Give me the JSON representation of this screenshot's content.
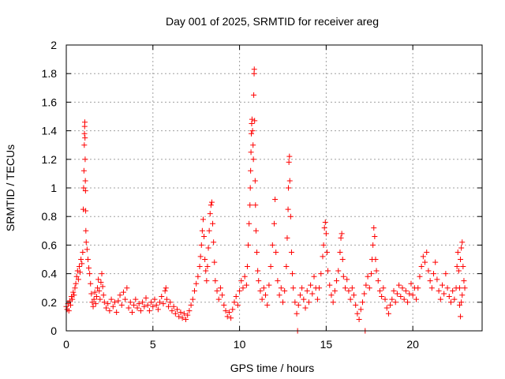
{
  "chart_data": {
    "type": "scatter",
    "title": "Day 001 of 2025, SRMTID for receiver areg",
    "xlabel": "GPS time / hours",
    "ylabel": "SRMTID / TECUs",
    "xlim": [
      0,
      24
    ],
    "ylim": [
      0,
      2
    ],
    "xticks": [
      0,
      5,
      10,
      15,
      20
    ],
    "xtick_labels": [
      "0",
      "5",
      "10",
      "15",
      "20"
    ],
    "yticks": [
      0,
      0.2,
      0.4,
      0.6,
      0.8,
      1.0,
      1.2,
      1.4,
      1.6,
      1.8,
      2.0
    ],
    "ytick_labels": [
      "0",
      "0.2",
      "0.4",
      "0.6",
      "0.8",
      "1",
      "1.2",
      "1.4",
      "1.6",
      "1.8",
      "2"
    ],
    "grid": true,
    "marker": "+",
    "color": "#ff0000",
    "series": [
      {
        "name": "SRMTID",
        "points": [
          [
            0.0,
            0.17
          ],
          [
            0.05,
            0.15
          ],
          [
            0.1,
            0.19
          ],
          [
            0.15,
            0.14
          ],
          [
            0.2,
            0.21
          ],
          [
            0.25,
            0.18
          ],
          [
            0.3,
            0.24
          ],
          [
            0.35,
            0.22
          ],
          [
            0.4,
            0.27
          ],
          [
            0.45,
            0.25
          ],
          [
            0.5,
            0.3
          ],
          [
            0.55,
            0.33
          ],
          [
            0.6,
            0.38
          ],
          [
            0.65,
            0.42
          ],
          [
            0.7,
            0.36
          ],
          [
            0.75,
            0.45
          ],
          [
            0.8,
            0.41
          ],
          [
            0.85,
            0.5
          ],
          [
            0.9,
            0.47
          ],
          [
            0.95,
            0.55
          ],
          [
            0.98,
            0.85
          ],
          [
            1.0,
            1.0
          ],
          [
            1.02,
            1.12
          ],
          [
            1.04,
            1.3
          ],
          [
            1.05,
            1.38
          ],
          [
            1.06,
            1.43
          ],
          [
            1.07,
            1.46
          ],
          [
            1.08,
            1.35
          ],
          [
            1.09,
            1.2
          ],
          [
            1.1,
            1.05
          ],
          [
            1.11,
            0.98
          ],
          [
            1.12,
            0.84
          ],
          [
            1.13,
            0.7
          ],
          [
            1.15,
            0.62
          ],
          [
            1.2,
            0.57
          ],
          [
            1.25,
            0.5
          ],
          [
            1.3,
            0.44
          ],
          [
            1.35,
            0.4
          ],
          [
            1.4,
            0.33
          ],
          [
            1.45,
            0.26
          ],
          [
            1.5,
            0.2
          ],
          [
            1.55,
            0.17
          ],
          [
            1.6,
            0.22
          ],
          [
            1.65,
            0.27
          ],
          [
            1.7,
            0.19
          ],
          [
            1.75,
            0.24
          ],
          [
            1.8,
            0.3
          ],
          [
            1.85,
            0.36
          ],
          [
            1.9,
            0.28
          ],
          [
            1.95,
            0.22
          ],
          [
            2.0,
            0.34
          ],
          [
            2.05,
            0.4
          ],
          [
            2.1,
            0.31
          ],
          [
            2.15,
            0.25
          ],
          [
            2.2,
            0.2
          ],
          [
            2.3,
            0.16
          ],
          [
            2.4,
            0.19
          ],
          [
            2.5,
            0.14
          ],
          [
            2.6,
            0.22
          ],
          [
            2.7,
            0.17
          ],
          [
            2.8,
            0.2
          ],
          [
            2.9,
            0.13
          ],
          [
            3.0,
            0.21
          ],
          [
            3.1,
            0.25
          ],
          [
            3.2,
            0.18
          ],
          [
            3.3,
            0.27
          ],
          [
            3.4,
            0.22
          ],
          [
            3.5,
            0.3
          ],
          [
            3.6,
            0.16
          ],
          [
            3.7,
            0.2
          ],
          [
            3.8,
            0.13
          ],
          [
            3.9,
            0.18
          ],
          [
            4.0,
            0.22
          ],
          [
            4.1,
            0.16
          ],
          [
            4.2,
            0.19
          ],
          [
            4.3,
            0.14
          ],
          [
            4.4,
            0.2
          ],
          [
            4.5,
            0.17
          ],
          [
            4.6,
            0.23
          ],
          [
            4.7,
            0.18
          ],
          [
            4.8,
            0.14
          ],
          [
            4.9,
            0.2
          ],
          [
            5.0,
            0.17
          ],
          [
            5.1,
            0.22
          ],
          [
            5.2,
            0.18
          ],
          [
            5.3,
            0.15
          ],
          [
            5.4,
            0.2
          ],
          [
            5.5,
            0.24
          ],
          [
            5.6,
            0.19
          ],
          [
            5.7,
            0.28
          ],
          [
            5.75,
            0.3
          ],
          [
            5.8,
            0.22
          ],
          [
            5.9,
            0.17
          ],
          [
            6.0,
            0.2
          ],
          [
            6.1,
            0.14
          ],
          [
            6.2,
            0.17
          ],
          [
            6.3,
            0.12
          ],
          [
            6.4,
            0.15
          ],
          [
            6.5,
            0.1
          ],
          [
            6.6,
            0.13
          ],
          [
            6.7,
            0.09
          ],
          [
            6.8,
            0.12
          ],
          [
            6.9,
            0.08
          ],
          [
            7.0,
            0.11
          ],
          [
            7.1,
            0.14
          ],
          [
            7.2,
            0.18
          ],
          [
            7.3,
            0.22
          ],
          [
            7.4,
            0.28
          ],
          [
            7.5,
            0.33
          ],
          [
            7.6,
            0.38
          ],
          [
            7.7,
            0.45
          ],
          [
            7.75,
            0.52
          ],
          [
            7.8,
            0.6
          ],
          [
            7.85,
            0.7
          ],
          [
            7.9,
            0.78
          ],
          [
            7.95,
            0.66
          ],
          [
            8.0,
            0.5
          ],
          [
            8.05,
            0.42
          ],
          [
            8.1,
            0.35
          ],
          [
            8.15,
            0.45
          ],
          [
            8.2,
            0.58
          ],
          [
            8.25,
            0.7
          ],
          [
            8.3,
            0.82
          ],
          [
            8.35,
            0.88
          ],
          [
            8.4,
            0.9
          ],
          [
            8.45,
            0.75
          ],
          [
            8.5,
            0.62
          ],
          [
            8.55,
            0.48
          ],
          [
            8.6,
            0.35
          ],
          [
            8.7,
            0.28
          ],
          [
            8.8,
            0.22
          ],
          [
            8.9,
            0.3
          ],
          [
            9.0,
            0.25
          ],
          [
            9.1,
            0.18
          ],
          [
            9.2,
            0.14
          ],
          [
            9.3,
            0.1
          ],
          [
            9.4,
            0.13
          ],
          [
            9.5,
            0.09
          ],
          [
            9.6,
            0.15
          ],
          [
            9.7,
            0.2
          ],
          [
            9.8,
            0.24
          ],
          [
            9.9,
            0.18
          ],
          [
            10.0,
            0.28
          ],
          [
            10.1,
            0.35
          ],
          [
            10.2,
            0.3
          ],
          [
            10.3,
            0.38
          ],
          [
            10.4,
            0.32
          ],
          [
            10.45,
            0.45
          ],
          [
            10.5,
            0.6
          ],
          [
            10.55,
            0.75
          ],
          [
            10.6,
            0.88
          ],
          [
            10.62,
            1.0
          ],
          [
            10.64,
            1.12
          ],
          [
            10.66,
            1.25
          ],
          [
            10.68,
            1.38
          ],
          [
            10.7,
            1.45
          ],
          [
            10.72,
            1.48
          ],
          [
            10.75,
            1.4
          ],
          [
            10.78,
            1.3
          ],
          [
            10.8,
            1.2
          ],
          [
            10.82,
            1.65
          ],
          [
            10.84,
            1.8
          ],
          [
            10.85,
            1.83
          ],
          [
            10.87,
            1.47
          ],
          [
            10.9,
            1.05
          ],
          [
            10.92,
            0.88
          ],
          [
            10.95,
            0.7
          ],
          [
            11.0,
            0.55
          ],
          [
            11.05,
            0.42
          ],
          [
            11.1,
            0.35
          ],
          [
            11.2,
            0.28
          ],
          [
            11.3,
            0.22
          ],
          [
            11.4,
            0.3
          ],
          [
            11.5,
            0.25
          ],
          [
            11.6,
            0.18
          ],
          [
            11.7,
            0.32
          ],
          [
            11.8,
            0.45
          ],
          [
            11.9,
            0.6
          ],
          [
            12.0,
            0.75
          ],
          [
            12.05,
            0.92
          ],
          [
            12.1,
            0.55
          ],
          [
            12.2,
            0.35
          ],
          [
            12.3,
            0.25
          ],
          [
            12.4,
            0.3
          ],
          [
            12.5,
            0.2
          ],
          [
            12.6,
            0.28
          ],
          [
            12.7,
            0.45
          ],
          [
            12.75,
            0.65
          ],
          [
            12.8,
            0.85
          ],
          [
            12.82,
            1.0
          ],
          [
            12.85,
            1.18
          ],
          [
            12.88,
            1.22
          ],
          [
            12.9,
            1.05
          ],
          [
            12.95,
            0.8
          ],
          [
            13.0,
            0.55
          ],
          [
            13.05,
            0.4
          ],
          [
            13.1,
            0.3
          ],
          [
            13.2,
            0.2
          ],
          [
            13.3,
            0.12
          ],
          [
            13.35,
            0.0
          ],
          [
            13.4,
            0.18
          ],
          [
            13.5,
            0.25
          ],
          [
            13.6,
            0.3
          ],
          [
            13.7,
            0.22
          ],
          [
            13.8,
            0.16
          ],
          [
            13.9,
            0.28
          ],
          [
            14.0,
            0.2
          ],
          [
            14.1,
            0.32
          ],
          [
            14.2,
            0.26
          ],
          [
            14.3,
            0.38
          ],
          [
            14.4,
            0.3
          ],
          [
            14.5,
            0.22
          ],
          [
            14.6,
            0.3
          ],
          [
            14.7,
            0.4
          ],
          [
            14.8,
            0.52
          ],
          [
            14.85,
            0.6
          ],
          [
            14.9,
            0.72
          ],
          [
            14.95,
            0.76
          ],
          [
            15.0,
            0.68
          ],
          [
            15.05,
            0.55
          ],
          [
            15.1,
            0.42
          ],
          [
            15.2,
            0.32
          ],
          [
            15.3,
            0.25
          ],
          [
            15.4,
            0.2
          ],
          [
            15.5,
            0.28
          ],
          [
            15.6,
            0.35
          ],
          [
            15.7,
            0.42
          ],
          [
            15.8,
            0.55
          ],
          [
            15.85,
            0.65
          ],
          [
            15.9,
            0.68
          ],
          [
            15.95,
            0.5
          ],
          [
            16.0,
            0.38
          ],
          [
            16.1,
            0.3
          ],
          [
            16.2,
            0.36
          ],
          [
            16.3,
            0.28
          ],
          [
            16.4,
            0.22
          ],
          [
            16.5,
            0.3
          ],
          [
            16.6,
            0.25
          ],
          [
            16.7,
            0.18
          ],
          [
            16.8,
            0.12
          ],
          [
            16.9,
            0.08
          ],
          [
            17.0,
            0.15
          ],
          [
            17.1,
            0.2
          ],
          [
            17.2,
            0.26
          ],
          [
            17.25,
            0.0
          ],
          [
            17.3,
            0.32
          ],
          [
            17.4,
            0.38
          ],
          [
            17.5,
            0.3
          ],
          [
            17.6,
            0.4
          ],
          [
            17.65,
            0.5
          ],
          [
            17.7,
            0.6
          ],
          [
            17.75,
            0.72
          ],
          [
            17.8,
            0.66
          ],
          [
            17.85,
            0.5
          ],
          [
            17.9,
            0.42
          ],
          [
            18.0,
            0.35
          ],
          [
            18.1,
            0.28
          ],
          [
            18.2,
            0.24
          ],
          [
            18.3,
            0.3
          ],
          [
            18.4,
            0.22
          ],
          [
            18.5,
            0.16
          ],
          [
            18.6,
            0.12
          ],
          [
            18.7,
            0.18
          ],
          [
            18.8,
            0.22
          ],
          [
            18.9,
            0.28
          ],
          [
            19.0,
            0.2
          ],
          [
            19.1,
            0.26
          ],
          [
            19.2,
            0.32
          ],
          [
            19.3,
            0.24
          ],
          [
            19.4,
            0.3
          ],
          [
            19.5,
            0.22
          ],
          [
            19.6,
            0.28
          ],
          [
            19.7,
            0.2
          ],
          [
            19.8,
            0.26
          ],
          [
            19.9,
            0.33
          ],
          [
            20.0,
            0.25
          ],
          [
            20.1,
            0.3
          ],
          [
            20.2,
            0.22
          ],
          [
            20.3,
            0.3
          ],
          [
            20.4,
            0.38
          ],
          [
            20.5,
            0.45
          ],
          [
            20.6,
            0.52
          ],
          [
            20.7,
            0.48
          ],
          [
            20.8,
            0.55
          ],
          [
            20.9,
            0.42
          ],
          [
            21.0,
            0.35
          ],
          [
            21.1,
            0.3
          ],
          [
            21.2,
            0.4
          ],
          [
            21.3,
            0.48
          ],
          [
            21.4,
            0.36
          ],
          [
            21.5,
            0.28
          ],
          [
            21.6,
            0.22
          ],
          [
            21.7,
            0.32
          ],
          [
            21.8,
            0.26
          ],
          [
            21.9,
            0.4
          ],
          [
            22.0,
            0.3
          ],
          [
            22.1,
            0.24
          ],
          [
            22.2,
            0.2
          ],
          [
            22.3,
            0.28
          ],
          [
            22.4,
            0.22
          ],
          [
            22.5,
            0.3
          ],
          [
            22.55,
            0.45
          ],
          [
            22.6,
            0.55
          ],
          [
            22.65,
            0.42
          ],
          [
            22.7,
            0.3
          ],
          [
            22.75,
            0.5
          ],
          [
            22.8,
            0.58
          ],
          [
            22.85,
            0.62
          ],
          [
            22.9,
            0.45
          ],
          [
            22.95,
            0.35
          ],
          [
            23.0,
            0.3
          ],
          [
            22.7,
            0.18
          ],
          [
            22.75,
            0.1
          ],
          [
            22.8,
            0.2
          ],
          [
            22.85,
            0.25
          ]
        ]
      }
    ]
  }
}
